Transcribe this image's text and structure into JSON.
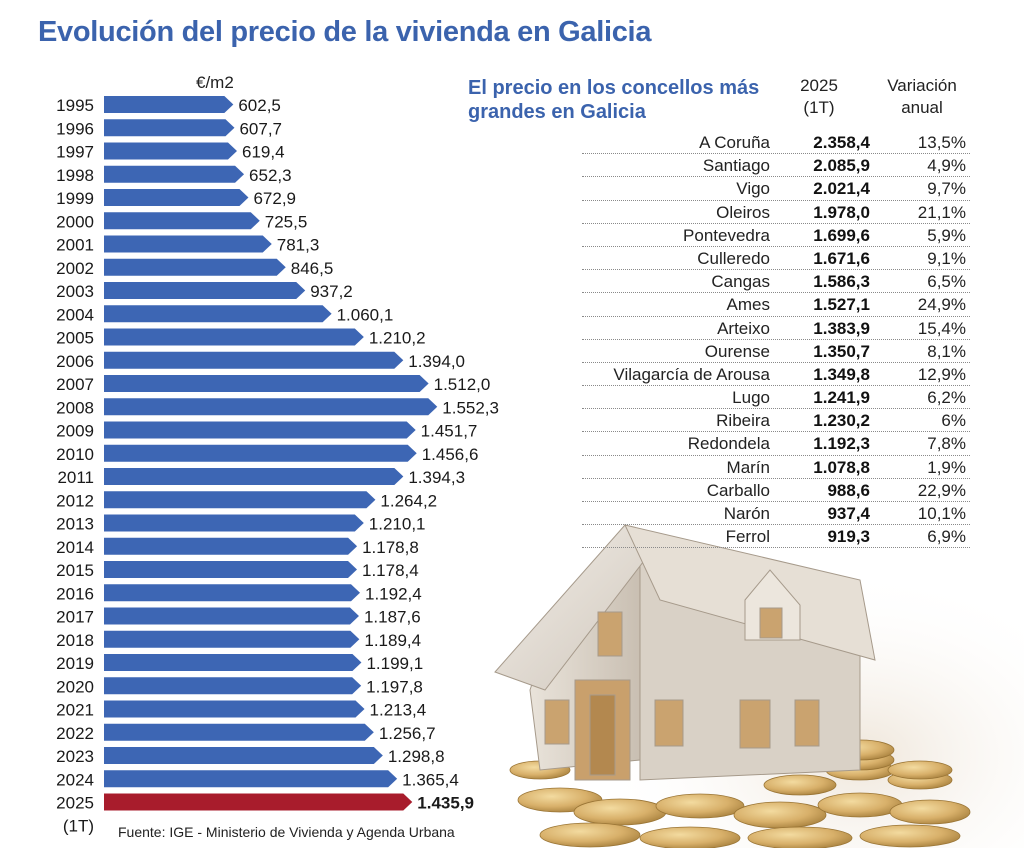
{
  "title": "Evolución del precio de la vivienda en Galicia",
  "colors": {
    "accent": "#3b63ad",
    "bar": "#3d66b4",
    "bar_highlight": "#a81c2c"
  },
  "chart_data": {
    "type": "bar",
    "orientation": "horizontal",
    "unit_label": "€/m2",
    "categories": [
      "1995",
      "1996",
      "1997",
      "1998",
      "1999",
      "2000",
      "2001",
      "2002",
      "2003",
      "2004",
      "2005",
      "2006",
      "2007",
      "2008",
      "2009",
      "2010",
      "2011",
      "2012",
      "2013",
      "2014",
      "2015",
      "2016",
      "2017",
      "2018",
      "2019",
      "2020",
      "2021",
      "2022",
      "2023",
      "2024",
      "2025"
    ],
    "category_note_last": "(1T)",
    "values": [
      602.5,
      607.7,
      619.4,
      652.3,
      672.9,
      725.5,
      781.3,
      846.5,
      937.2,
      1060.1,
      1210.2,
      1394.0,
      1512.0,
      1552.3,
      1451.7,
      1456.6,
      1394.3,
      1264.2,
      1210.1,
      1178.8,
      1178.4,
      1192.4,
      1187.6,
      1189.4,
      1199.1,
      1197.8,
      1213.4,
      1256.7,
      1298.8,
      1365.4,
      1435.9
    ],
    "value_labels": [
      "602,5",
      "607,7",
      "619,4",
      "652,3",
      "672,9",
      "725,5",
      "781,3",
      "846,5",
      "937,2",
      "1.060,1",
      "1.210,2",
      "1.394,0",
      "1.512,0",
      "1.552,3",
      "1.451,7",
      "1.456,6",
      "1.394,3",
      "1.264,2",
      "1.210,1",
      "1.178,8",
      "1.178,4",
      "1.192,4",
      "1.187,6",
      "1.189,4",
      "1.199,1",
      "1.197,8",
      "1.213,4",
      "1.256,7",
      "1.298,8",
      "1.365,4",
      "1.435,9"
    ],
    "highlight_last": true,
    "grid": false
  },
  "table": {
    "subtitle": "El precio en los concellos más grandes en Galicia",
    "col_price_header": "2025\n(1T)",
    "col_var_header": "Variación\nanual",
    "rows": [
      {
        "name": "A Coruña",
        "price": "2.358,4",
        "variation": "13,5%"
      },
      {
        "name": "Santiago",
        "price": "2.085,9",
        "variation": "4,9%"
      },
      {
        "name": "Vigo",
        "price": "2.021,4",
        "variation": "9,7%"
      },
      {
        "name": "Oleiros",
        "price": "1.978,0",
        "variation": "21,1%"
      },
      {
        "name": "Pontevedra",
        "price": "1.699,6",
        "variation": "5,9%"
      },
      {
        "name": "Culleredo",
        "price": "1.671,6",
        "variation": "9,1%"
      },
      {
        "name": "Cangas",
        "price": "1.586,3",
        "variation": "6,5%"
      },
      {
        "name": "Ames",
        "price": "1.527,1",
        "variation": "24,9%"
      },
      {
        "name": "Arteixo",
        "price": "1.383,9",
        "variation": "15,4%"
      },
      {
        "name": "Ourense",
        "price": "1.350,7",
        "variation": "8,1%"
      },
      {
        "name": "Vilagarcía de Arousa",
        "price": "1.349,8",
        "variation": "12,9%"
      },
      {
        "name": "Lugo",
        "price": "1.241,9",
        "variation": "6,2%"
      },
      {
        "name": "Ribeira",
        "price": "1.230,2",
        "variation": "6%"
      },
      {
        "name": "Redondela",
        "price": "1.192,3",
        "variation": "7,8%"
      },
      {
        "name": "Marín",
        "price": "1.078,8",
        "variation": "1,9%"
      },
      {
        "name": "Carballo",
        "price": "988,6",
        "variation": "22,9%"
      },
      {
        "name": "Narón",
        "price": "937,4",
        "variation": "10,1%"
      },
      {
        "name": "Ferrol",
        "price": "919,3",
        "variation": "6,9%"
      }
    ]
  },
  "source": "Fuente: IGE - Ministerio de Vivienda y Agenda Urbana",
  "illustration": "house-on-coins"
}
